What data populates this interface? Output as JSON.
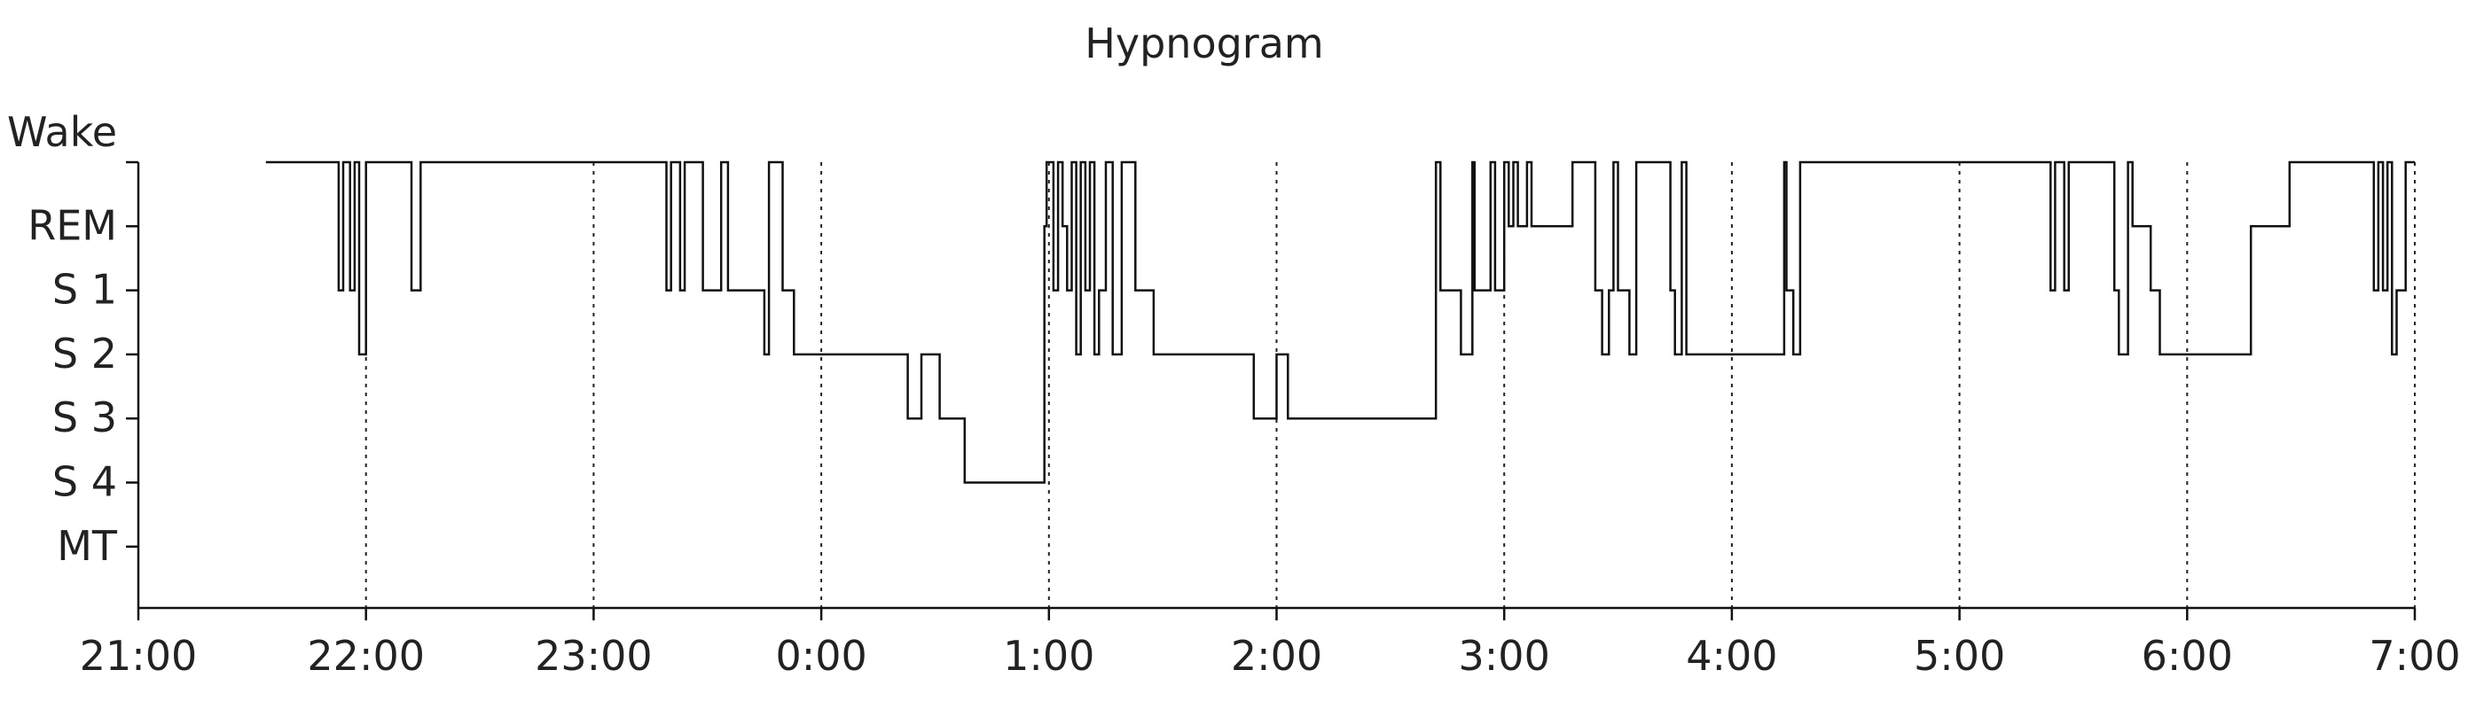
{
  "chart_data": {
    "type": "line",
    "title": "Hypnogram",
    "xlabel": "",
    "ylabel": "",
    "y_categories": [
      "Wake",
      "REM",
      "S 1",
      "S 2",
      "S 3",
      "S 4",
      "MT"
    ],
    "x_ticks": [
      "21:00",
      "22:00",
      "23:00",
      "0:00",
      "1:00",
      "2:00",
      "3:00",
      "4:00",
      "5:00",
      "6:00",
      "7:00"
    ],
    "xlim_hours": [
      0,
      10
    ],
    "vertical_grid": "dotted at each hour from 22:00",
    "series": [
      {
        "step": "post",
        "x": [
          0.56,
          0.88,
          0.9,
          0.93,
          0.95,
          0.97,
          1.0,
          1.2,
          1.24,
          1.3,
          2.32,
          2.34,
          2.38,
          2.4,
          2.48,
          2.56,
          2.59,
          2.64,
          2.75,
          2.77,
          2.83,
          2.88,
          3.3,
          3.38,
          3.44,
          3.52,
          3.62,
          3.63,
          3.98,
          3.99,
          4.02,
          4.04,
          4.06,
          4.08,
          4.1,
          4.12,
          4.14,
          4.16,
          4.18,
          4.2,
          4.22,
          4.25,
          4.28,
          4.32,
          4.38,
          4.46,
          4.9,
          4.94,
          5.0,
          5.05,
          5.15,
          5.18,
          5.28,
          5.7,
          5.72,
          5.81,
          5.86,
          5.87,
          5.94,
          5.96,
          6.0,
          6.02,
          6.04,
          6.06,
          6.1,
          6.12,
          6.14,
          6.27,
          6.3,
          6.4,
          6.43,
          6.46,
          6.48,
          6.5,
          6.55,
          6.58,
          6.73,
          6.75,
          6.78,
          6.8,
          6.84,
          6.86,
          6.88,
          7.2,
          7.23,
          7.24,
          7.27,
          7.3,
          8.4,
          8.42,
          8.46,
          8.48,
          8.68,
          8.7,
          8.74,
          8.76,
          8.84,
          8.86,
          8.88,
          8.9,
          9.28,
          9.32,
          9.45,
          9.82,
          9.84,
          9.86,
          9.88,
          9.9,
          9.92,
          9.96,
          9.98,
          10.0
        ],
        "y": [
          "Wake",
          "S 1",
          "Wake",
          "S 1",
          "Wake",
          "S 2",
          "Wake",
          "S 1",
          "Wake",
          "Wake",
          "S 1",
          "Wake",
          "S 1",
          "Wake",
          "S 1",
          "Wake",
          "S 1",
          "S 1",
          "S 2",
          "Wake",
          "S 1",
          "S 2",
          "S 2",
          "S 3",
          "S 2",
          "S 3",
          "S 3",
          "S 4",
          "REM",
          "Wake",
          "S 1",
          "Wake",
          "REM",
          "S 1",
          "Wake",
          "S 2",
          "Wake",
          "S 1",
          "Wake",
          "S 2",
          "S 1",
          "Wake",
          "S 2",
          "Wake",
          "S 1",
          "S 2",
          "S 3",
          "S 3",
          "S 2",
          "S 3",
          "S 3",
          "S 3",
          "S 3",
          "Wake",
          "S 1",
          "S 2",
          "Wake",
          "S 1",
          "Wake",
          "S 1",
          "Wake",
          "REM",
          "Wake",
          "REM",
          "Wake",
          "REM",
          "REM",
          "REM",
          "Wake",
          "S 1",
          "S 2",
          "S 1",
          "Wake",
          "S 1",
          "S 2",
          "Wake",
          "S 1",
          "S 2",
          "Wake",
          "S 2",
          "S 2",
          "S 2",
          "S 2",
          "S 2",
          "Wake",
          "S 1",
          "S 2",
          "Wake",
          "S 1",
          "Wake",
          "S 1",
          "Wake",
          "S 1",
          "S 2",
          "Wake",
          "REM",
          "S 1",
          "S 1",
          "S 2",
          "S 2",
          "REM",
          "REM",
          "Wake",
          "S 1",
          "Wake",
          "S 1",
          "Wake",
          "S 2",
          "S 1",
          "Wake",
          "Wake",
          "Wake"
        ]
      }
    ]
  },
  "colors": {
    "line": "#111111",
    "axis": "#111111",
    "grid": "#222222",
    "background": "#ffffff"
  }
}
